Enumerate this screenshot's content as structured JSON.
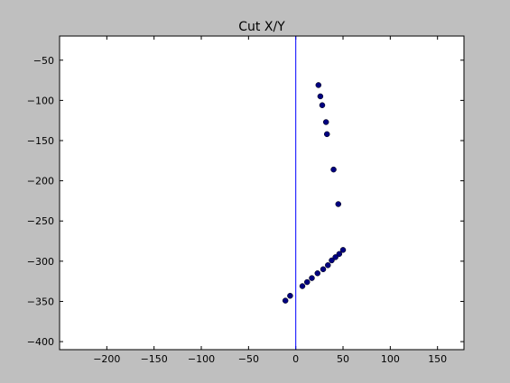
{
  "chart_data": {
    "type": "scatter",
    "title": "Cut X/Y",
    "xlabel": "",
    "ylabel": "",
    "xlim": [
      -250,
      178
    ],
    "ylim": [
      -410,
      -20
    ],
    "xticks": [
      -200,
      -150,
      -100,
      -50,
      0,
      50,
      100,
      150
    ],
    "yticks": [
      -50,
      -100,
      -150,
      -200,
      -250,
      -300,
      -350,
      -400
    ],
    "xtick_labels": [
      "−200",
      "−150",
      "−100",
      "−50",
      "0",
      "50",
      "100",
      "150"
    ],
    "ytick_labels": [
      "−50",
      "−100",
      "−150",
      "−200",
      "−250",
      "−300",
      "−350",
      "−400"
    ],
    "vertical_line_x": 0,
    "grid": false,
    "point_color": "#000080",
    "line_color": "#0000ff",
    "series": [
      {
        "x": [
          24,
          26,
          28,
          32,
          33,
          40,
          45,
          50,
          46,
          42,
          38,
          34,
          29,
          23,
          17,
          12,
          7,
          -6,
          -11
        ],
        "y": [
          -81,
          -95,
          -106,
          -127,
          -142,
          -186,
          -229,
          -286,
          -291,
          -295,
          -299,
          -305,
          -310,
          -315,
          -321,
          -326,
          -331,
          -343,
          -349
        ]
      }
    ]
  }
}
